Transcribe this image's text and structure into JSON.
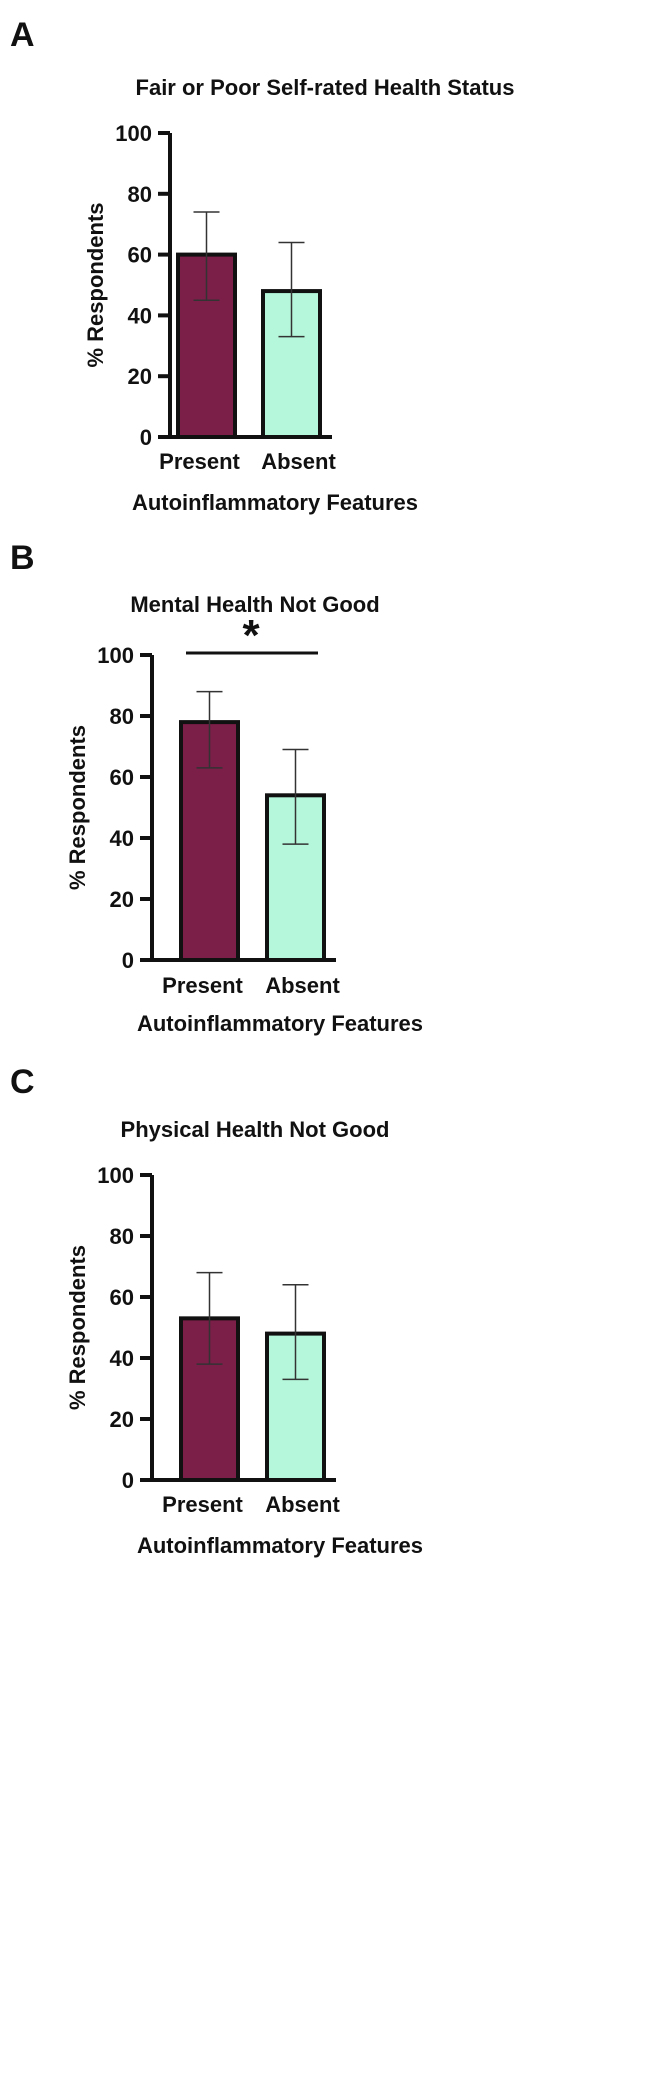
{
  "chart_data": [
    {
      "type": "bar",
      "panel": "A",
      "title": "Fair or Poor Self-rated Health Status",
      "ylabel": "% Respondents",
      "xlabel": "Autoinflammatory Features",
      "categories": [
        "Present",
        "Absent"
      ],
      "values": [
        60,
        48
      ],
      "error_low": [
        45,
        33
      ],
      "error_high": [
        74,
        64
      ],
      "colors": [
        "#7b1e48",
        "#b4f7da"
      ],
      "ylim": [
        0,
        100
      ],
      "yticks": [
        0,
        20,
        40,
        60,
        80,
        100
      ],
      "significance": null
    },
    {
      "type": "bar",
      "panel": "B",
      "title": "Mental Health Not Good",
      "ylabel": "% Respondents",
      "xlabel": "Autoinflammatory Features",
      "categories": [
        "Present",
        "Absent"
      ],
      "values": [
        78,
        54
      ],
      "error_low": [
        63,
        38
      ],
      "error_high": [
        88,
        69
      ],
      "colors": [
        "#7b1e48",
        "#b4f7da"
      ],
      "ylim": [
        0,
        100
      ],
      "yticks": [
        0,
        20,
        40,
        60,
        80,
        100
      ],
      "significance": "*"
    },
    {
      "type": "bar",
      "panel": "C",
      "title": "Physical Health Not Good",
      "ylabel": "% Respondents",
      "xlabel": "Autoinflammatory Features",
      "categories": [
        "Present",
        "Absent"
      ],
      "values": [
        53,
        48
      ],
      "error_low": [
        38,
        33
      ],
      "error_high": [
        68,
        64
      ],
      "colors": [
        "#7b1e48",
        "#b4f7da"
      ],
      "ylim": [
        0,
        100
      ],
      "yticks": [
        0,
        20,
        40,
        60,
        80,
        100
      ],
      "significance": null
    }
  ]
}
